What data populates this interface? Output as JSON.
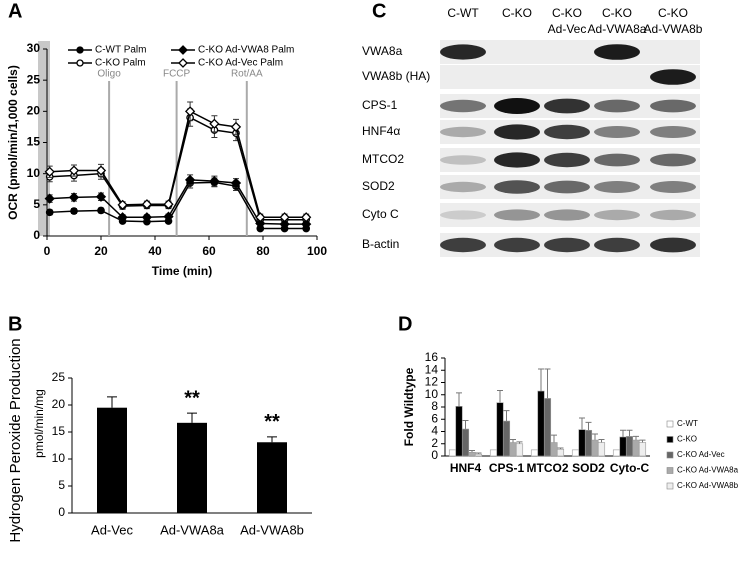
{
  "chart_data": [
    {
      "type": "line",
      "label": "A",
      "ylabel": "OCR (pmol/min/1,000 cells)",
      "xlabel": "Time (min)",
      "x": [
        1,
        10,
        20,
        28,
        37,
        45,
        53,
        62,
        70,
        79,
        88,
        96
      ],
      "xlim": [
        0,
        100
      ],
      "xticks": [
        0,
        20,
        40,
        60,
        80,
        100
      ],
      "ylim": [
        0,
        30
      ],
      "yticks": [
        0,
        5,
        10,
        15,
        20,
        25,
        30
      ],
      "annotations": [
        {
          "x": 23,
          "text": "Oligo"
        },
        {
          "x": 48,
          "text": "FCCP"
        },
        {
          "x": 74,
          "text": "Rot/AA"
        }
      ],
      "series": [
        {
          "name": "C-WT Palm",
          "color": "#000000",
          "marker": "circle",
          "filled": true,
          "values": [
            3.8,
            4.0,
            4.1,
            2.4,
            2.3,
            2.4,
            8.5,
            8.6,
            8.0,
            1.2,
            1.2,
            1.2
          ],
          "errors": [
            0.4,
            0.4,
            0.4,
            0.3,
            0.3,
            0.3,
            0.8,
            0.7,
            0.7,
            0.3,
            0.3,
            0.3
          ]
        },
        {
          "name": "C-KO Palm",
          "color": "#000000",
          "marker": "circle",
          "filled": false,
          "values": [
            9.5,
            9.7,
            10.0,
            4.8,
            4.9,
            4.9,
            19.0,
            17.0,
            16.5,
            2.6,
            2.6,
            2.6
          ],
          "errors": [
            0.8,
            0.9,
            0.9,
            0.5,
            0.5,
            0.5,
            1.4,
            1.2,
            1.2,
            0.4,
            0.4,
            0.4
          ]
        },
        {
          "name": "C-KO Ad-VWA8 Palm",
          "color": "#000000",
          "marker": "diamond",
          "filled": true,
          "values": [
            6.0,
            6.2,
            6.3,
            3.0,
            3.0,
            3.1,
            9.0,
            8.8,
            8.5,
            2.0,
            1.9,
            1.9
          ],
          "errors": [
            0.6,
            0.6,
            0.6,
            0.4,
            0.4,
            0.4,
            0.8,
            0.8,
            0.7,
            0.3,
            0.3,
            0.3
          ]
        },
        {
          "name": "C-KO Ad-Vec Palm",
          "color": "#000000",
          "marker": "diamond",
          "filled": false,
          "values": [
            10.3,
            10.5,
            10.5,
            5.0,
            5.1,
            5.1,
            20.0,
            18.0,
            17.5,
            3.0,
            3.0,
            3.0
          ],
          "errors": [
            0.9,
            0.9,
            1.0,
            0.5,
            0.5,
            0.5,
            1.5,
            1.3,
            1.2,
            0.5,
            0.5,
            0.5
          ]
        }
      ]
    },
    {
      "type": "bar",
      "label": "B",
      "ylabel": "Hydrogen Peroxide Production",
      "yunit": "pmol/min/mg",
      "categories": [
        "Ad-Vec",
        "Ad-VWA8a",
        "Ad-VWA8b"
      ],
      "values": [
        19.5,
        16.7,
        13.1
      ],
      "errors": [
        2.0,
        1.8,
        1.0
      ],
      "significance": [
        null,
        "**",
        "**"
      ],
      "color": "#000000",
      "ylim": [
        0,
        25
      ],
      "yticks": [
        0,
        5,
        10,
        15,
        20,
        25
      ]
    },
    {
      "type": "grouped_bar",
      "label": "D",
      "ylabel": "Fold Wildtype",
      "categories": [
        "HNF4",
        "CPS-1",
        "MTCO2",
        "SOD2",
        "Cyto-C"
      ],
      "ylim": [
        0,
        16
      ],
      "yticks": [
        0,
        2,
        4,
        6,
        8,
        10,
        12,
        14,
        16
      ],
      "series": [
        {
          "name": "C-WT",
          "color": "#ffffff",
          "values": [
            1,
            1,
            1,
            1,
            1
          ]
        },
        {
          "name": "C-KO",
          "color": "#000000",
          "values": [
            8.1,
            8.7,
            10.6,
            4.3,
            3.1
          ],
          "errors": [
            2.2,
            2.0,
            3.6,
            1.9,
            1.1
          ]
        },
        {
          "name": "C-KO Ad-Vec",
          "color": "#666666",
          "values": [
            4.4,
            5.7,
            9.4,
            4.2,
            3.2
          ],
          "errors": [
            1.4,
            1.7,
            4.8,
            1.3,
            1.0
          ]
        },
        {
          "name": "C-KO Ad-VWA8a",
          "color": "#aaaaaa",
          "values": [
            0.6,
            2.2,
            2.2,
            2.6,
            2.6
          ],
          "errors": [
            0.3,
            0.5,
            1.2,
            1.0,
            0.6
          ]
        },
        {
          "name": "C-KO Ad-VWA8b",
          "color": "#eeeeee",
          "values": [
            0.3,
            2.0,
            1.1,
            2.2,
            2.2
          ],
          "errors": [
            0.2,
            0.3,
            0.2,
            0.5,
            0.4
          ]
        }
      ]
    }
  ],
  "blot": {
    "label": "C",
    "lanes": [
      [
        "C-WT"
      ],
      [
        "C-KO"
      ],
      [
        "C-KO",
        "Ad-Vec"
      ],
      [
        "C-KO",
        "Ad-VWA8a"
      ],
      [
        "C-KO",
        "Ad-VWA8b"
      ]
    ],
    "rows": [
      "VWA8a",
      "VWA8b (HA)",
      "CPS-1",
      "HNF4α",
      "MTCO2",
      "SOD2",
      "Cyto C",
      "B-actin"
    ]
  }
}
